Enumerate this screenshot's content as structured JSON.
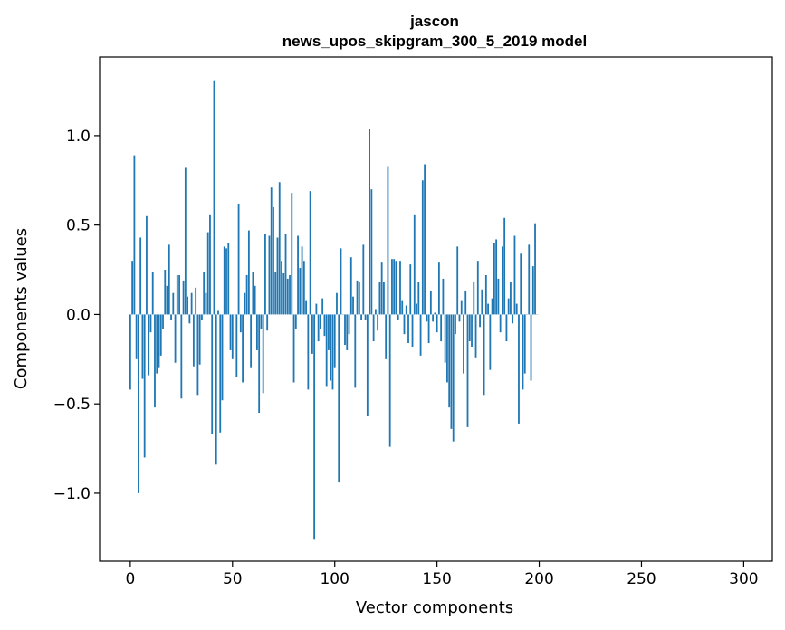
{
  "chart_data": {
    "type": "bar",
    "title": "jascon",
    "subtitle": "news_upos_skipgram_300_5_2019 model",
    "xlabel": "Vector components",
    "ylabel": "Components values",
    "xlim": [
      -15,
      314
    ],
    "ylim": [
      -1.38,
      1.44
    ],
    "x_ticks": [
      {
        "value": 0,
        "label": "0"
      },
      {
        "value": 50,
        "label": "50"
      },
      {
        "value": 100,
        "label": "100"
      },
      {
        "value": 150,
        "label": "150"
      },
      {
        "value": 200,
        "label": "200"
      },
      {
        "value": 250,
        "label": "250"
      },
      {
        "value": 300,
        "label": "300"
      }
    ],
    "y_ticks": [
      {
        "value": -1.0,
        "label": "−1.0"
      },
      {
        "value": -0.5,
        "label": "−0.5"
      },
      {
        "value": 0.0,
        "label": "0.0"
      },
      {
        "value": 0.5,
        "label": "0.5"
      },
      {
        "value": 1.0,
        "label": "1.0"
      }
    ],
    "bar_color": "#1f77b4",
    "grid": false,
    "values": [
      -0.42,
      0.3,
      0.89,
      -0.25,
      -1.0,
      0.43,
      -0.36,
      -0.8,
      0.55,
      -0.34,
      -0.1,
      0.24,
      -0.52,
      -0.33,
      -0.3,
      -0.23,
      -0.08,
      0.25,
      0.16,
      0.39,
      -0.03,
      0.12,
      -0.27,
      0.22,
      0.22,
      -0.47,
      0.19,
      0.82,
      0.1,
      -0.05,
      0.12,
      -0.29,
      0.15,
      -0.45,
      -0.28,
      -0.03,
      0.24,
      0.12,
      0.46,
      0.56,
      -0.67,
      1.31,
      -0.84,
      0.02,
      -0.66,
      -0.48,
      0.38,
      0.37,
      0.4,
      -0.2,
      -0.25,
      0.0,
      -0.35,
      0.62,
      -0.1,
      -0.38,
      0.12,
      0.22,
      0.47,
      -0.3,
      0.24,
      0.16,
      -0.2,
      -0.55,
      -0.08,
      -0.44,
      0.45,
      -0.09,
      0.44,
      0.71,
      0.6,
      0.24,
      0.43,
      0.74,
      0.3,
      0.23,
      0.45,
      0.2,
      0.22,
      0.68,
      -0.38,
      -0.08,
      0.44,
      0.26,
      0.38,
      0.3,
      0.08,
      -0.42,
      0.69,
      -0.22,
      -1.26,
      0.06,
      -0.15,
      -0.08,
      0.09,
      -0.12,
      -0.4,
      -0.2,
      -0.37,
      -0.42,
      -0.3,
      0.12,
      -0.94,
      0.37,
      0.0,
      -0.17,
      -0.2,
      -0.11,
      0.32,
      0.1,
      -0.41,
      0.19,
      0.18,
      -0.03,
      0.39,
      -0.03,
      -0.57,
      1.04,
      0.7,
      -0.15,
      0.03,
      -0.09,
      0.18,
      0.29,
      0.18,
      -0.25,
      0.83,
      -0.74,
      0.31,
      0.31,
      0.3,
      -0.03,
      0.3,
      0.08,
      -0.11,
      0.05,
      -0.16,
      0.28,
      -0.18,
      0.56,
      0.06,
      0.18,
      -0.23,
      0.75,
      0.84,
      -0.04,
      -0.16,
      0.13,
      -0.04,
      0.01,
      -0.1,
      0.29,
      -0.15,
      0.2,
      -0.27,
      -0.38,
      -0.52,
      -0.64,
      -0.71,
      -0.11,
      0.38,
      -0.04,
      0.08,
      -0.33,
      0.13,
      -0.63,
      -0.15,
      -0.18,
      0.18,
      -0.24,
      0.3,
      -0.07,
      0.14,
      -0.45,
      0.22,
      0.06,
      -0.31,
      0.09,
      0.4,
      0.42,
      0.2,
      -0.1,
      0.38,
      0.54,
      -0.15,
      0.09,
      0.18,
      -0.05,
      0.44,
      0.06,
      -0.61,
      0.34,
      -0.42,
      -0.33,
      0.0,
      0.39,
      -0.37,
      0.27,
      0.51,
      0.0
    ]
  }
}
